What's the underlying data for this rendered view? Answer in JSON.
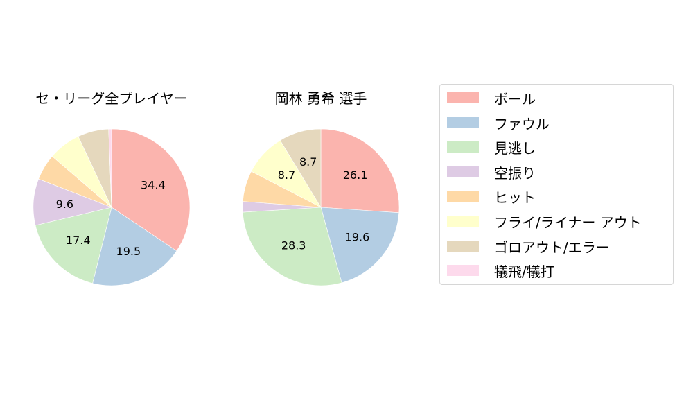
{
  "chart_data": [
    {
      "type": "pie",
      "title": "セ・リーグ全プレイヤー",
      "center": [
        161,
        299
      ],
      "radius": 113,
      "start_angle": 90,
      "direction": "clockwise",
      "categories": [
        "ボール",
        "ファウル",
        "見逃し",
        "空振り",
        "ヒット",
        "フライ/ライナー アウト",
        "ゴロアウト/エラー",
        "犠飛/犠打"
      ],
      "values": [
        34.4,
        19.5,
        17.4,
        9.6,
        5.4,
        6.7,
        6.4,
        0.6
      ],
      "labels": [
        "34.4",
        "19.5",
        "17.4",
        "9.6",
        "",
        "",
        "",
        ""
      ]
    },
    {
      "type": "pie",
      "title": "岡林 勇希  選手",
      "center": [
        463,
        299
      ],
      "radius": 113,
      "start_angle": 90,
      "direction": "clockwise",
      "categories": [
        "ボール",
        "ファウル",
        "見逃し",
        "空振り",
        "ヒット",
        "フライ/ライナー アウト",
        "ゴロアウト/エラー",
        "犠飛/犠打"
      ],
      "values": [
        26.1,
        19.6,
        28.3,
        2.2,
        6.4,
        8.7,
        8.7,
        0
      ],
      "labels": [
        "26.1",
        "19.6",
        "28.3",
        "",
        "",
        "8.7",
        "8.7",
        ""
      ]
    }
  ],
  "titles": {
    "left": "セ・リーグ全プレイヤー",
    "right": "岡林 勇希  選手"
  },
  "legend": {
    "items": [
      {
        "label": "ボール",
        "color": "#fbb4ae"
      },
      {
        "label": "ファウル",
        "color": "#b3cde3"
      },
      {
        "label": "見逃し",
        "color": "#ccebc5"
      },
      {
        "label": "空振り",
        "color": "#decbe4"
      },
      {
        "label": "ヒット",
        "color": "#fed9a6"
      },
      {
        "label": "フライ/ライナー アウト",
        "color": "#ffffcc"
      },
      {
        "label": "ゴロアウト/エラー",
        "color": "#e5d8bd"
      },
      {
        "label": "犠飛/犠打",
        "color": "#fddaec"
      }
    ]
  }
}
